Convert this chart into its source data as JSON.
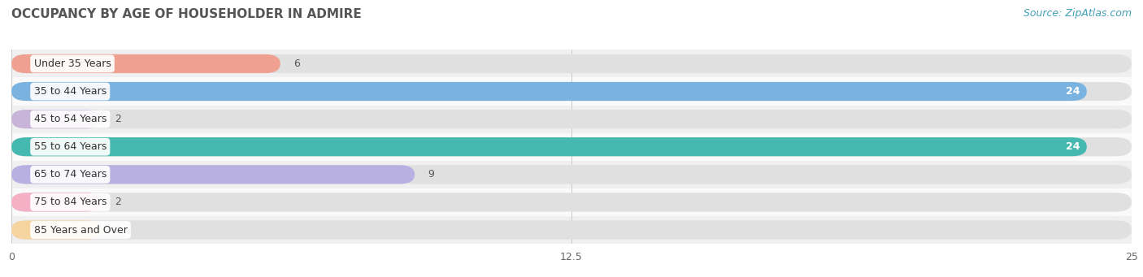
{
  "title": "OCCUPANCY BY AGE OF HOUSEHOLDER IN ADMIRE",
  "source": "Source: ZipAtlas.com",
  "categories": [
    "Under 35 Years",
    "35 to 44 Years",
    "45 to 54 Years",
    "55 to 64 Years",
    "65 to 74 Years",
    "75 to 84 Years",
    "85 Years and Over"
  ],
  "values": [
    6,
    24,
    2,
    24,
    9,
    2,
    2
  ],
  "bar_colors": [
    "#f0a090",
    "#7ab3e0",
    "#c8b4d8",
    "#45b8b0",
    "#b8b0e0",
    "#f4b0c4",
    "#f5d4a0"
  ],
  "label_colors": [
    "#555555",
    "#ffffff",
    "#555555",
    "#ffffff",
    "#555555",
    "#555555",
    "#555555"
  ],
  "xlim": [
    0,
    25
  ],
  "xticks": [
    0,
    12.5,
    25
  ],
  "title_fontsize": 11,
  "source_fontsize": 9,
  "background_color": "#ffffff",
  "row_bg_colors": [
    "#f0f0f0",
    "#fafafa"
  ]
}
